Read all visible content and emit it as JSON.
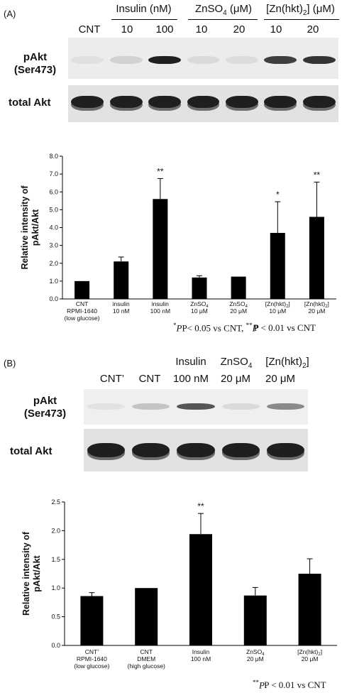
{
  "panelA": {
    "label": "(A)",
    "header": {
      "groups": [
        {
          "text": "Insulin (nM)"
        },
        {
          "text": "ZnSO",
          "sub": "4",
          "suffix": " (μM)"
        },
        {
          "text": "[Zn(hkt)",
          "sub": "2",
          "suffix": "] (μM)"
        }
      ],
      "lanes": [
        "CNT",
        "10",
        "100",
        "10",
        "20",
        "10",
        "20"
      ]
    },
    "blot_labels": {
      "pakt": [
        "pAkt",
        "(Ser473)"
      ],
      "total": "total Akt"
    },
    "pakt_intensity": [
      0.05,
      0.12,
      0.95,
      0.08,
      0.07,
      0.8,
      0.85
    ],
    "footnote": {
      "p1": "P< 0.05 vs CNT,  ",
      "p2": "P < 0.01 vs CNT",
      "star1": "*",
      "star2": "**"
    }
  },
  "panelB": {
    "label": "(B)",
    "header": {
      "row1": [
        "Insulin",
        "ZnSO",
        "[Zn(hkt)"
      ],
      "row1_sub": [
        "",
        "4",
        "2"
      ],
      "row1_suffix": [
        "",
        "",
        "]"
      ],
      "lanes": [
        "CNT’",
        "CNT",
        "100 nM",
        "20 μM",
        "20 μM"
      ]
    },
    "blot_labels": {
      "pakt": [
        "pAkt",
        "(Ser473)"
      ],
      "total": "total Akt"
    },
    "pakt_intensity": [
      0.04,
      0.18,
      0.7,
      0.08,
      0.45
    ],
    "footnote": {
      "star": "**",
      "p": "P < 0.01 vs CNT"
    }
  },
  "chart_data": [
    {
      "type": "bar",
      "ylabel": "Relative intensity of pAkt/Akt",
      "ylim": [
        0,
        8
      ],
      "yticks": [
        "0.0",
        "1.0",
        "2.0",
        "3.0",
        "4.0",
        "5.0",
        "6.0",
        "7.0",
        "8.0"
      ],
      "categories": [
        [
          "CNT",
          "RPMI-1640",
          "(low glucose)"
        ],
        [
          "insulin",
          "10 nM"
        ],
        [
          "insulin",
          "100 nM"
        ],
        [
          "ZnSO4",
          "10 μM"
        ],
        [
          "ZnSO4",
          "20 μM"
        ],
        [
          "[Zn(hkt)2]",
          "10 μM"
        ],
        [
          "[Zn(hkt)2]",
          "20 μM"
        ]
      ],
      "values": [
        1.0,
        2.1,
        5.6,
        1.2,
        1.25,
        3.7,
        4.6
      ],
      "errors": [
        0,
        0.25,
        1.15,
        0.1,
        0,
        1.75,
        1.95
      ],
      "annotations": [
        "",
        "",
        "**",
        "",
        "",
        "*",
        "**"
      ]
    },
    {
      "type": "bar",
      "ylabel": "Relative intensity of pAkt/Akt",
      "ylim": [
        0,
        2.5
      ],
      "yticks": [
        "0.0",
        "0.5",
        "1.0",
        "1.5",
        "2.0",
        "2.5"
      ],
      "categories": [
        [
          "CNT’",
          "RPMI-1640",
          "(low glucose)"
        ],
        [
          "CNT",
          "DMEM",
          "(high glucose)"
        ],
        [
          "Insulin",
          "100 nM"
        ],
        [
          "ZnSO4",
          "20 μM"
        ],
        [
          "[Zn(hkt)2]",
          "20 μM"
        ]
      ],
      "values": [
        0.86,
        1.0,
        1.94,
        0.87,
        1.25
      ],
      "errors": [
        0.06,
        0,
        0.36,
        0.14,
        0.26
      ],
      "annotations": [
        "",
        "",
        "**",
        "",
        ""
      ]
    }
  ]
}
